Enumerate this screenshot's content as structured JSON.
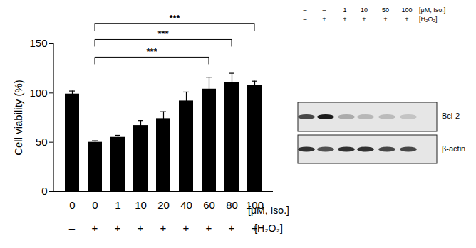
{
  "chart_data": {
    "type": "bar",
    "categories": [
      "0",
      "0",
      "1",
      "10",
      "20",
      "40",
      "60",
      "80",
      "100"
    ],
    "category_row_label": "[μM, Iso.]",
    "treatment_row": {
      "label": "[H₂O₂]",
      "values": [
        "–",
        "+",
        "+",
        "+",
        "+",
        "+",
        "+",
        "+",
        "+"
      ]
    },
    "values": [
      99,
      50,
      55,
      67,
      74,
      92,
      104,
      111,
      108
    ],
    "errors": [
      3,
      1.5,
      2,
      5,
      7,
      9,
      12,
      9,
      4
    ],
    "color": "#000000",
    "ylabel": "Cell viability (%)",
    "ylim": [
      0,
      150
    ],
    "yticks": [
      0,
      50,
      100,
      150
    ],
    "grid": false,
    "significance": [
      {
        "from": 1,
        "to": 6,
        "y": 136,
        "label": "***"
      },
      {
        "from": 1,
        "to": 7,
        "y": 154,
        "label": "***"
      },
      {
        "from": 1,
        "to": 8,
        "y": 170,
        "label": "***"
      }
    ]
  },
  "blot": {
    "iso_row": {
      "values": [
        "–",
        "–",
        "1",
        "10",
        "50",
        "100"
      ],
      "label": "[μM, Iso.]"
    },
    "h2o2_row": {
      "values": [
        "–",
        "+",
        "+",
        "+",
        "+",
        "+"
      ],
      "label": "[H₂O₂]"
    },
    "panels": [
      "Bcl-2",
      "β-actin"
    ]
  }
}
